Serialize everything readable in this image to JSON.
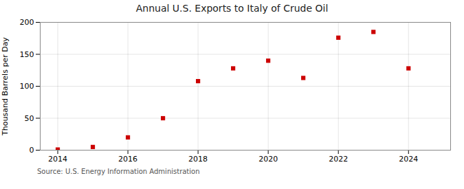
{
  "chart_data": {
    "type": "scatter",
    "title": "Annual U.S. Exports to Italy of Crude Oil",
    "ylabel": "Thousand Barrels per Day",
    "source": "Source: U.S. Energy Information Administration",
    "x": [
      2014,
      2015,
      2016,
      2017,
      2018,
      2019,
      2020,
      2021,
      2022,
      2023,
      2024
    ],
    "values": [
      1,
      5,
      20,
      50,
      108,
      128,
      140,
      113,
      176,
      185,
      128
    ],
    "color": "#cc0000",
    "marker": "square",
    "xlim": [
      2013.5,
      2025.2
    ],
    "ylim": [
      0,
      200
    ],
    "xticks": [
      2014,
      2016,
      2018,
      2020,
      2022,
      2024
    ],
    "yticks": [
      0,
      50,
      100,
      150,
      200
    ],
    "grid": true
  }
}
